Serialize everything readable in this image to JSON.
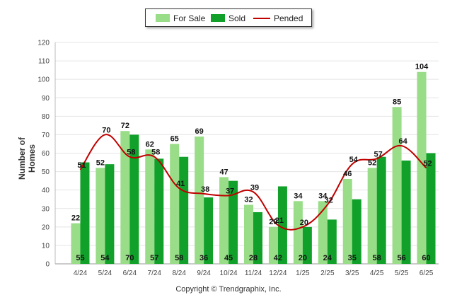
{
  "chart_data": {
    "type": "bar",
    "categories": [
      "4/24",
      "5/24",
      "6/24",
      "7/24",
      "8/24",
      "9/24",
      "10/24",
      "11/24",
      "12/24",
      "1/25",
      "2/25",
      "3/25",
      "4/25",
      "5/25",
      "6/25"
    ],
    "series": [
      {
        "name": "For Sale",
        "type": "bar",
        "color": "#99dd88",
        "values": [
          22,
          52,
          72,
          62,
          65,
          69,
          47,
          32,
          20,
          34,
          34,
          46,
          52,
          85,
          104
        ]
      },
      {
        "name": "Sold",
        "type": "bar",
        "color": "#11a12a",
        "values": [
          55,
          54,
          70,
          57,
          58,
          36,
          45,
          28,
          42,
          20,
          24,
          35,
          58,
          56,
          60
        ]
      },
      {
        "name": "Pended",
        "type": "line",
        "color": "#c00000",
        "values": [
          51,
          70,
          58,
          58,
          41,
          38,
          37,
          39,
          21,
          20,
          32,
          54,
          57,
          64,
          52
        ]
      }
    ],
    "ylabel": "Number of Homes",
    "ylim": [
      0,
      120
    ],
    "yticks": [
      0,
      10,
      20,
      30,
      40,
      50,
      60,
      70,
      80,
      90,
      100,
      110,
      120
    ],
    "grid": true,
    "legend_position": "top-center"
  },
  "copyright": "Copyright © Trendgraphix, Inc."
}
